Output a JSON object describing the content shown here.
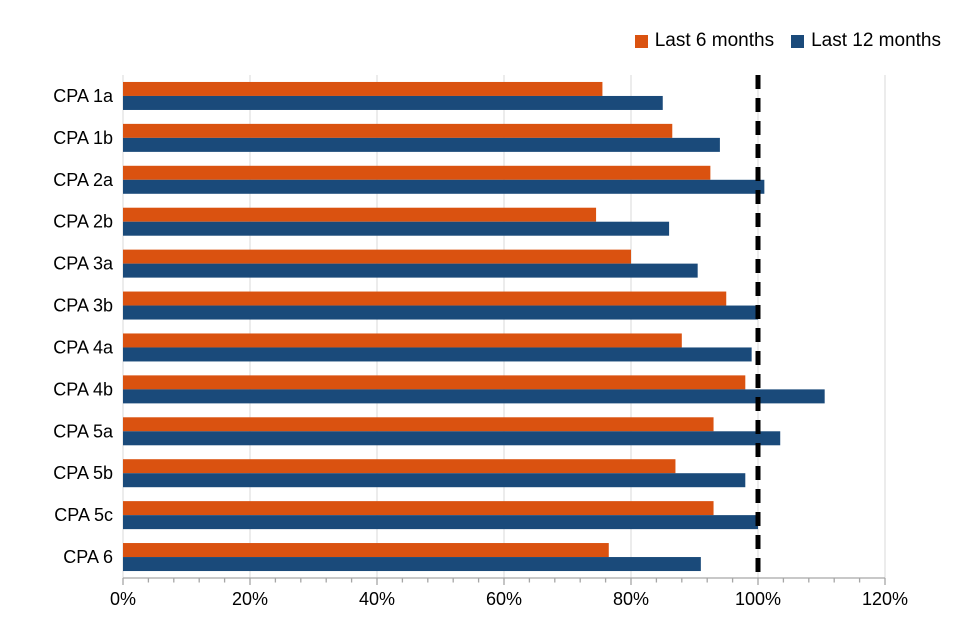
{
  "legend": {
    "items": [
      {
        "label": "Last 6 months",
        "color": "#DA5210"
      },
      {
        "label": "Last 12 months",
        "color": "#1A4A7A"
      }
    ]
  },
  "chart_data": {
    "type": "bar",
    "orientation": "horizontal",
    "title": "",
    "categories": [
      "CPA 1a",
      "CPA 1b",
      "CPA 2a",
      "CPA 2b",
      "CPA 3a",
      "CPA 3b",
      "CPA 4a",
      "CPA 4b",
      "CPA 5a",
      "CPA 5b",
      "CPA 5c",
      "CPA 6"
    ],
    "series": [
      {
        "name": "Last 6 months",
        "color": "#DA5210",
        "values": [
          75.5,
          86.5,
          92.5,
          74.5,
          80,
          95,
          88,
          98,
          93,
          87,
          93,
          76.5
        ]
      },
      {
        "name": "Last 12 months",
        "color": "#1A4A7A",
        "values": [
          85,
          94,
          101,
          86,
          90.5,
          100,
          99,
          110.5,
          103.5,
          98,
          100,
          91
        ]
      }
    ],
    "xlim": [
      0,
      120
    ],
    "x_tick_labels": [
      "0%",
      "20%",
      "40%",
      "60%",
      "80%",
      "100%",
      "120%"
    ],
    "x_major_tick_step": 20,
    "x_minor_tick_step": 4,
    "reference_line": {
      "value": 100,
      "style": "dashed",
      "color": "#000000"
    },
    "grid": true,
    "legend_position": "top-right",
    "colors": {
      "gridline": "#D9D9D9",
      "axis": "#A6A6A6",
      "text": "#000000"
    }
  }
}
